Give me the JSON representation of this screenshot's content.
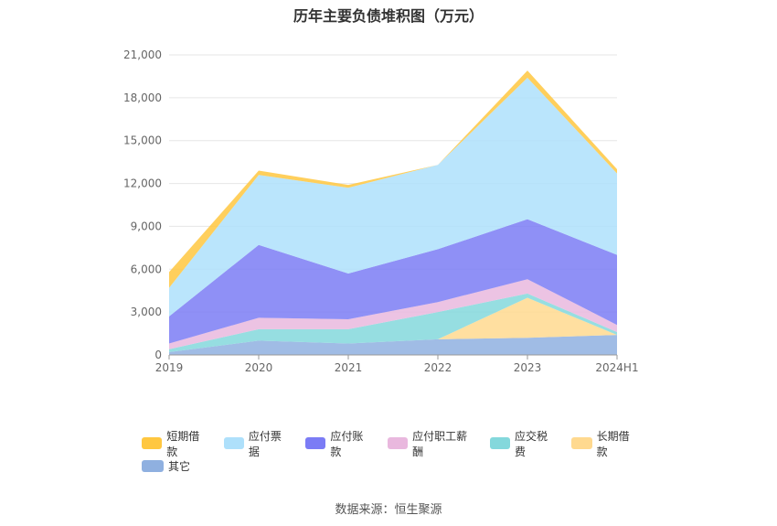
{
  "title": "历年主要负债堆积图（万元）",
  "source": "数据来源：恒生聚源",
  "chart_data": {
    "type": "area",
    "stacked": true,
    "title": "历年主要负债堆积图（万元）",
    "categories": [
      "2019",
      "2020",
      "2021",
      "2022",
      "2023",
      "2024H1"
    ],
    "ylim": [
      0,
      21000
    ],
    "yticks": [
      "0",
      "3,000",
      "6,000",
      "9,000",
      "12,000",
      "15,000",
      "18,000",
      "21,000"
    ],
    "ytick_values": [
      0,
      3000,
      6000,
      9000,
      12000,
      15000,
      18000,
      21000
    ],
    "grid": true,
    "legend_position": "bottom",
    "series": [
      {
        "name": "其它",
        "color": "#8fb0e0",
        "values": [
          200,
          1000,
          800,
          1100,
          1200,
          1400
        ]
      },
      {
        "name": "长期借款",
        "color": "#ffd98f",
        "values": [
          0,
          0,
          0,
          0,
          2800,
          0
        ]
      },
      {
        "name": "应交税费",
        "color": "#84d8dc",
        "values": [
          200,
          800,
          1000,
          1900,
          300,
          200
        ]
      },
      {
        "name": "应付职工薪酬",
        "color": "#e9b8de",
        "values": [
          400,
          800,
          700,
          700,
          1000,
          500
        ]
      },
      {
        "name": "应付账款",
        "color": "#7b7cf5",
        "values": [
          1900,
          5100,
          3200,
          3700,
          4200,
          4900
        ]
      },
      {
        "name": "应付票据",
        "color": "#aee0fb",
        "values": [
          2000,
          4900,
          6000,
          5900,
          9900,
          5700
        ]
      },
      {
        "name": "短期借款",
        "color": "#ffc740",
        "values": [
          1100,
          300,
          200,
          0,
          500,
          300
        ]
      }
    ],
    "legend_order": [
      "短期借款",
      "应付票据",
      "应付账款",
      "应付职工薪酬",
      "应交税费",
      "长期借款",
      "其它"
    ]
  }
}
